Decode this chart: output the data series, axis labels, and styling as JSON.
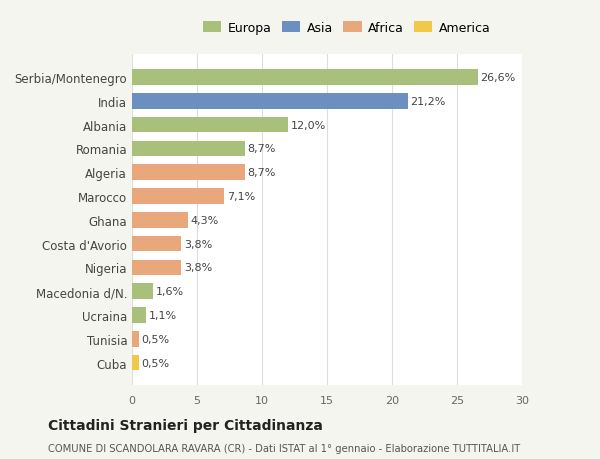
{
  "categories": [
    "Serbia/Montenegro",
    "India",
    "Albania",
    "Romania",
    "Algeria",
    "Marocco",
    "Ghana",
    "Costa d'Avorio",
    "Nigeria",
    "Macedonia d/N.",
    "Ucraina",
    "Tunisia",
    "Cuba"
  ],
  "values": [
    26.6,
    21.2,
    12.0,
    8.7,
    8.7,
    7.1,
    4.3,
    3.8,
    3.8,
    1.6,
    1.1,
    0.5,
    0.5
  ],
  "labels": [
    "26,6%",
    "21,2%",
    "12,0%",
    "8,7%",
    "8,7%",
    "7,1%",
    "4,3%",
    "3,8%",
    "3,8%",
    "1,6%",
    "1,1%",
    "0,5%",
    "0,5%"
  ],
  "continents": [
    "Europa",
    "Asia",
    "Europa",
    "Europa",
    "Africa",
    "Africa",
    "Africa",
    "Africa",
    "Africa",
    "Europa",
    "Europa",
    "Africa",
    "America"
  ],
  "colors": {
    "Europa": "#a8c07a",
    "Asia": "#6b8fbf",
    "Africa": "#e8a87c",
    "America": "#f0c84a"
  },
  "legend_order": [
    "Europa",
    "Asia",
    "Africa",
    "America"
  ],
  "xlim": [
    0,
    30
  ],
  "xticks": [
    0,
    5,
    10,
    15,
    20,
    25,
    30
  ],
  "title": "Cittadini Stranieri per Cittadinanza",
  "subtitle": "COMUNE DI SCANDOLARA RAVARA (CR) - Dati ISTAT al 1° gennaio - Elaborazione TUTTITALIA.IT",
  "background_color": "#f5f5f0",
  "plot_bg_color": "#ffffff",
  "grid_color": "#dddddd"
}
